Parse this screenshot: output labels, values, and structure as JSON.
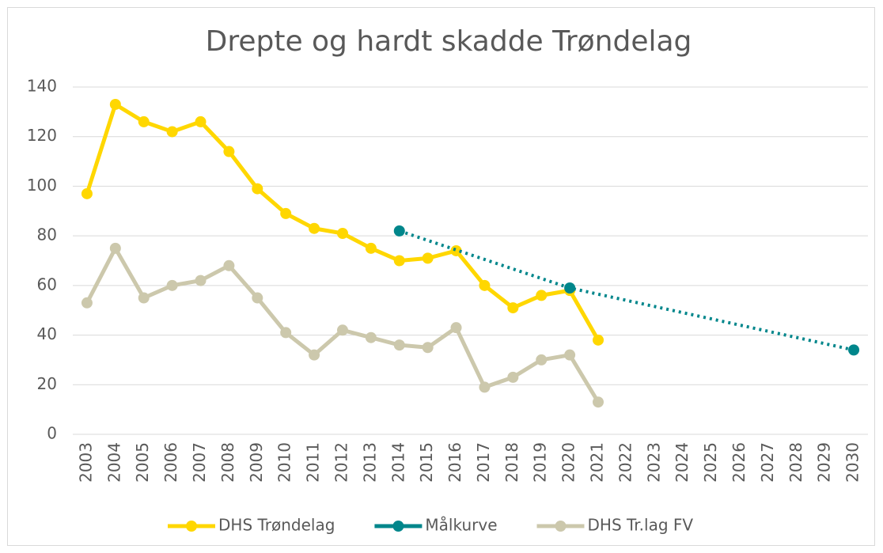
{
  "chart_data": {
    "type": "line",
    "title": "Drepte og hardt skadde Trøndelag",
    "categories": [
      "2003",
      "2004",
      "2005",
      "2006",
      "2007",
      "2008",
      "2009",
      "2010",
      "2011",
      "2012",
      "2013",
      "2014",
      "2015",
      "2016",
      "2017",
      "2018",
      "2019",
      "2020",
      "2021",
      "2022",
      "2023",
      "2024",
      "2025",
      "2026",
      "2027",
      "2028",
      "2029",
      "2030"
    ],
    "series": [
      {
        "name": "DHS Trøndelag",
        "color": "#ffd700",
        "values": [
          97,
          133,
          126,
          122,
          126,
          114,
          99,
          89,
          83,
          81,
          75,
          70,
          71,
          74,
          60,
          51,
          56,
          58,
          38,
          null,
          null,
          null,
          null,
          null,
          null,
          null,
          null,
          null
        ]
      },
      {
        "name": "Målkurve",
        "color": "#00868b",
        "dash": "dotted",
        "x": [
          "2014",
          "2020",
          "2030"
        ],
        "values": [
          82,
          59,
          34
        ]
      },
      {
        "name": "DHS Tr.lag FV",
        "color": "#ccc8ac",
        "values": [
          53,
          75,
          55,
          60,
          62,
          68,
          55,
          41,
          32,
          42,
          39,
          36,
          35,
          43,
          19,
          23,
          30,
          32,
          13,
          null,
          null,
          null,
          null,
          null,
          null,
          null,
          null,
          null
        ]
      }
    ],
    "ylim": [
      0,
      140
    ],
    "yticks": [
      0,
      20,
      40,
      60,
      80,
      100,
      120,
      140
    ],
    "grid": true,
    "legend": "bottom"
  }
}
